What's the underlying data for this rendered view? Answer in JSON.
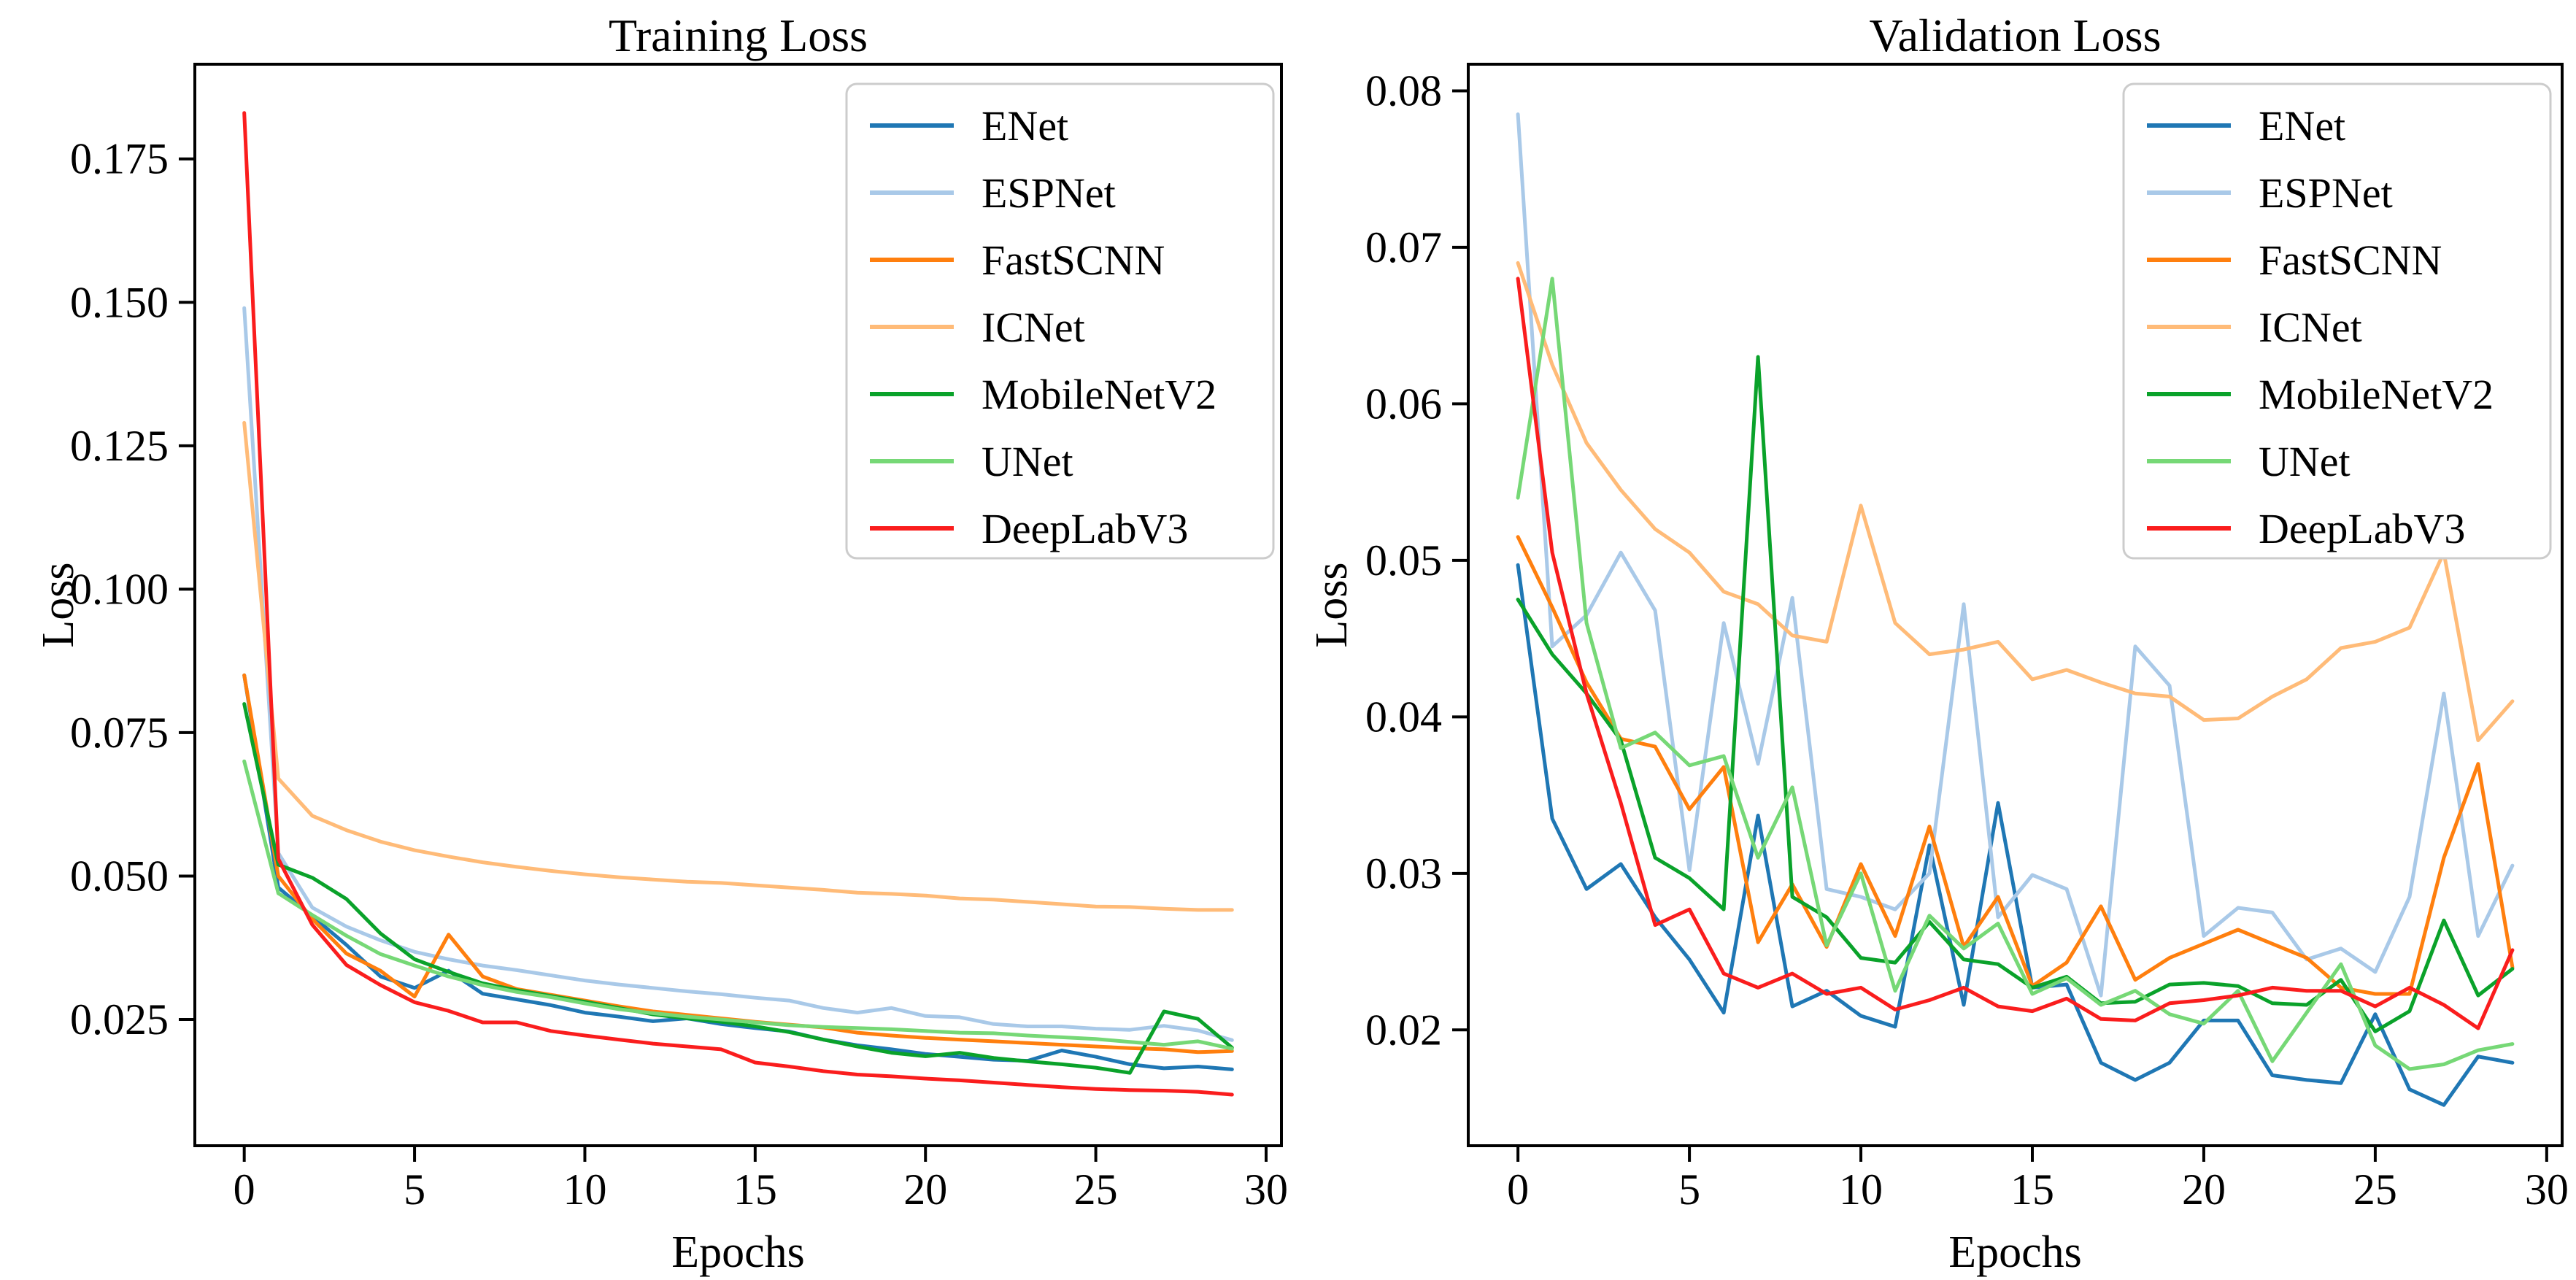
{
  "figure": {
    "background": "#ffffff",
    "text_color": "#000000",
    "spine_color": "#000000",
    "legend_border_color": "#cccccc"
  },
  "chart_data": [
    {
      "type": "line",
      "title": "Training Loss",
      "xlabel": "Epochs",
      "ylabel": "Loss",
      "x": [
        0,
        1,
        2,
        3,
        4,
        5,
        6,
        7,
        8,
        9,
        10,
        11,
        12,
        13,
        14,
        15,
        16,
        17,
        18,
        19,
        20,
        21,
        22,
        23,
        24,
        25,
        26,
        27,
        28,
        29
      ],
      "xlim": [
        -1.45,
        30.45
      ],
      "ylim": [
        0.003,
        0.1915
      ],
      "xticks": [
        0,
        5,
        10,
        15,
        20,
        25,
        30
      ],
      "xtick_labels": [
        "0",
        "5",
        "10",
        "15",
        "20",
        "25",
        "30"
      ],
      "yticks": [
        0.025,
        0.05,
        0.075,
        0.1,
        0.125,
        0.15,
        0.175
      ],
      "ytick_labels": [
        "0.025",
        "0.050",
        "0.075",
        "0.100",
        "0.125",
        "0.150",
        "0.175"
      ],
      "grid": false,
      "legend_position": "upper right",
      "series": [
        {
          "name": "ENet",
          "color": "#1f77b4",
          "values": [
            0.085,
            0.048,
            0.043,
            0.038,
            0.0325,
            0.0305,
            0.0335,
            0.0295,
            0.0285,
            0.0275,
            0.0262,
            0.0255,
            0.0247,
            0.0252,
            0.0242,
            0.0235,
            0.0229,
            0.0215,
            0.0205,
            0.0198,
            0.019,
            0.0185,
            0.018,
            0.0178,
            0.0196,
            0.0185,
            0.0172,
            0.0165,
            0.0168,
            0.0163
          ]
        },
        {
          "name": "ESPNet",
          "color": "#a9c9e8",
          "values": [
            0.149,
            0.054,
            0.0445,
            0.0412,
            0.0388,
            0.0368,
            0.0355,
            0.0344,
            0.0336,
            0.0327,
            0.0318,
            0.0311,
            0.0305,
            0.0299,
            0.0294,
            0.0288,
            0.0283,
            0.027,
            0.0262,
            0.027,
            0.0256,
            0.0254,
            0.0242,
            0.0238,
            0.0238,
            0.0234,
            0.0232,
            0.0239,
            0.0231,
            0.0214
          ]
        },
        {
          "name": "FastSCNN",
          "color": "#ff7f0e",
          "values": [
            0.085,
            0.05,
            0.0425,
            0.0365,
            0.0335,
            0.029,
            0.0398,
            0.0325,
            0.0303,
            0.0293,
            0.0283,
            0.0273,
            0.0264,
            0.0258,
            0.0252,
            0.0246,
            0.0241,
            0.0236,
            0.0227,
            0.0222,
            0.0218,
            0.0215,
            0.0212,
            0.0209,
            0.0206,
            0.0203,
            0.02,
            0.0198,
            0.0193,
            0.0195
          ]
        },
        {
          "name": "ICNet",
          "color": "#ffbb78",
          "values": [
            0.129,
            0.067,
            0.0605,
            0.058,
            0.056,
            0.0545,
            0.0534,
            0.0524,
            0.0516,
            0.0509,
            0.0503,
            0.0498,
            0.0494,
            0.049,
            0.0488,
            0.0484,
            0.048,
            0.0476,
            0.0471,
            0.0469,
            0.0466,
            0.0461,
            0.0459,
            0.0455,
            0.0451,
            0.0447,
            0.0446,
            0.0443,
            0.0441,
            0.0441
          ]
        },
        {
          "name": "MobileNetV2",
          "color": "#0aa22a",
          "values": [
            0.08,
            0.052,
            0.0497,
            0.046,
            0.04,
            0.0355,
            0.0333,
            0.0313,
            0.0301,
            0.0291,
            0.0281,
            0.027,
            0.0259,
            0.0252,
            0.0246,
            0.0238,
            0.0228,
            0.0215,
            0.0203,
            0.0192,
            0.0186,
            0.0192,
            0.0183,
            0.0177,
            0.0172,
            0.0166,
            0.0157,
            0.0264,
            0.0251,
            0.0201
          ]
        },
        {
          "name": "UNet",
          "color": "#76d876",
          "values": [
            0.07,
            0.047,
            0.0432,
            0.0396,
            0.0364,
            0.0344,
            0.0325,
            0.031,
            0.0298,
            0.0289,
            0.0278,
            0.0268,
            0.0261,
            0.0255,
            0.025,
            0.0245,
            0.024,
            0.0237,
            0.0235,
            0.0233,
            0.023,
            0.0227,
            0.0226,
            0.0222,
            0.0219,
            0.0216,
            0.0211,
            0.0206,
            0.0212,
            0.0199
          ]
        },
        {
          "name": "DeepLabV3",
          "color": "#fa1d1d",
          "values": [
            0.183,
            0.053,
            0.0415,
            0.0345,
            0.031,
            0.028,
            0.0265,
            0.0245,
            0.0245,
            0.023,
            0.0222,
            0.0215,
            0.0208,
            0.0203,
            0.0198,
            0.0175,
            0.0168,
            0.016,
            0.0154,
            0.0151,
            0.0147,
            0.0144,
            0.014,
            0.0136,
            0.0132,
            0.0129,
            0.0127,
            0.0126,
            0.0124,
            0.0119
          ]
        }
      ]
    },
    {
      "type": "line",
      "title": "Validation Loss",
      "xlabel": "Epochs",
      "ylabel": "Loss",
      "x": [
        0,
        1,
        2,
        3,
        4,
        5,
        6,
        7,
        8,
        9,
        10,
        11,
        12,
        13,
        14,
        15,
        16,
        17,
        18,
        19,
        20,
        21,
        22,
        23,
        24,
        25,
        26,
        27,
        28,
        29
      ],
      "xlim": [
        -1.45,
        30.45
      ],
      "ylim": [
        0.0126,
        0.0817
      ],
      "xticks": [
        0,
        5,
        10,
        15,
        20,
        25,
        30
      ],
      "xtick_labels": [
        "0",
        "5",
        "10",
        "15",
        "20",
        "25",
        "30"
      ],
      "yticks": [
        0.02,
        0.03,
        0.04,
        0.05,
        0.06,
        0.07,
        0.08
      ],
      "ytick_labels": [
        "0.02",
        "0.03",
        "0.04",
        "0.05",
        "0.06",
        "0.07",
        "0.08"
      ],
      "grid": false,
      "legend_position": "upper right",
      "series": [
        {
          "name": "ENet",
          "color": "#1f77b4",
          "values": [
            0.0497,
            0.0335,
            0.029,
            0.0306,
            0.0272,
            0.0245,
            0.0211,
            0.0337,
            0.0215,
            0.0225,
            0.0209,
            0.0202,
            0.0318,
            0.0216,
            0.0345,
            0.0227,
            0.0229,
            0.0179,
            0.0168,
            0.0179,
            0.0206,
            0.0206,
            0.0171,
            0.0168,
            0.0166,
            0.021,
            0.0162,
            0.0152,
            0.0183,
            0.0179
          ]
        },
        {
          "name": "ESPNet",
          "color": "#a9c9e8",
          "values": [
            0.0785,
            0.0445,
            0.0465,
            0.0505,
            0.0468,
            0.0302,
            0.046,
            0.037,
            0.0476,
            0.029,
            0.0285,
            0.0277,
            0.03,
            0.0472,
            0.0272,
            0.0299,
            0.029,
            0.0222,
            0.0445,
            0.042,
            0.026,
            0.0278,
            0.0275,
            0.0245,
            0.0252,
            0.0237,
            0.0285,
            0.0415,
            0.026,
            0.0305
          ]
        },
        {
          "name": "FastSCNN",
          "color": "#ff7f0e",
          "values": [
            0.0515,
            0.047,
            0.0422,
            0.0386,
            0.0381,
            0.0341,
            0.0368,
            0.0256,
            0.0293,
            0.0253,
            0.0306,
            0.026,
            0.033,
            0.0253,
            0.0285,
            0.0228,
            0.0243,
            0.0279,
            0.0232,
            0.0246,
            0.0255,
            0.0264,
            0.0255,
            0.0246,
            0.0227,
            0.0223,
            0.0223,
            0.031,
            0.037,
            0.024
          ]
        },
        {
          "name": "ICNet",
          "color": "#ffbb78",
          "values": [
            0.069,
            0.0625,
            0.0575,
            0.0545,
            0.052,
            0.0505,
            0.048,
            0.0472,
            0.0452,
            0.0448,
            0.0535,
            0.046,
            0.044,
            0.0443,
            0.0448,
            0.0424,
            0.043,
            0.0422,
            0.0415,
            0.0413,
            0.0398,
            0.0399,
            0.0413,
            0.0424,
            0.0444,
            0.0448,
            0.0457,
            0.0505,
            0.0385,
            0.041
          ]
        },
        {
          "name": "MobileNetV2",
          "color": "#0aa22a",
          "values": [
            0.0475,
            0.044,
            0.0415,
            0.0385,
            0.031,
            0.0297,
            0.0277,
            0.063,
            0.0285,
            0.0272,
            0.0246,
            0.0243,
            0.0269,
            0.0245,
            0.0242,
            0.0227,
            0.0234,
            0.0217,
            0.0218,
            0.0229,
            0.023,
            0.0228,
            0.0217,
            0.0216,
            0.0232,
            0.0199,
            0.0212,
            0.027,
            0.0222,
            0.0239
          ]
        },
        {
          "name": "UNet",
          "color": "#76d876",
          "values": [
            0.054,
            0.068,
            0.046,
            0.038,
            0.039,
            0.0369,
            0.0375,
            0.031,
            0.0355,
            0.0254,
            0.03,
            0.0225,
            0.0273,
            0.0252,
            0.0268,
            0.0223,
            0.0233,
            0.0216,
            0.0225,
            0.021,
            0.0204,
            0.0225,
            0.018,
            0.0211,
            0.0242,
            0.019,
            0.0175,
            0.0178,
            0.0187,
            0.0191
          ]
        },
        {
          "name": "DeepLabV3",
          "color": "#fa1d1d",
          "values": [
            0.068,
            0.0505,
            0.0415,
            0.0345,
            0.0267,
            0.0277,
            0.0236,
            0.0227,
            0.0236,
            0.0223,
            0.0227,
            0.0213,
            0.0219,
            0.0227,
            0.0215,
            0.0212,
            0.022,
            0.0207,
            0.0206,
            0.0217,
            0.0219,
            0.0222,
            0.0227,
            0.0225,
            0.0225,
            0.0215,
            0.0227,
            0.0216,
            0.0201,
            0.0251
          ]
        }
      ]
    }
  ]
}
